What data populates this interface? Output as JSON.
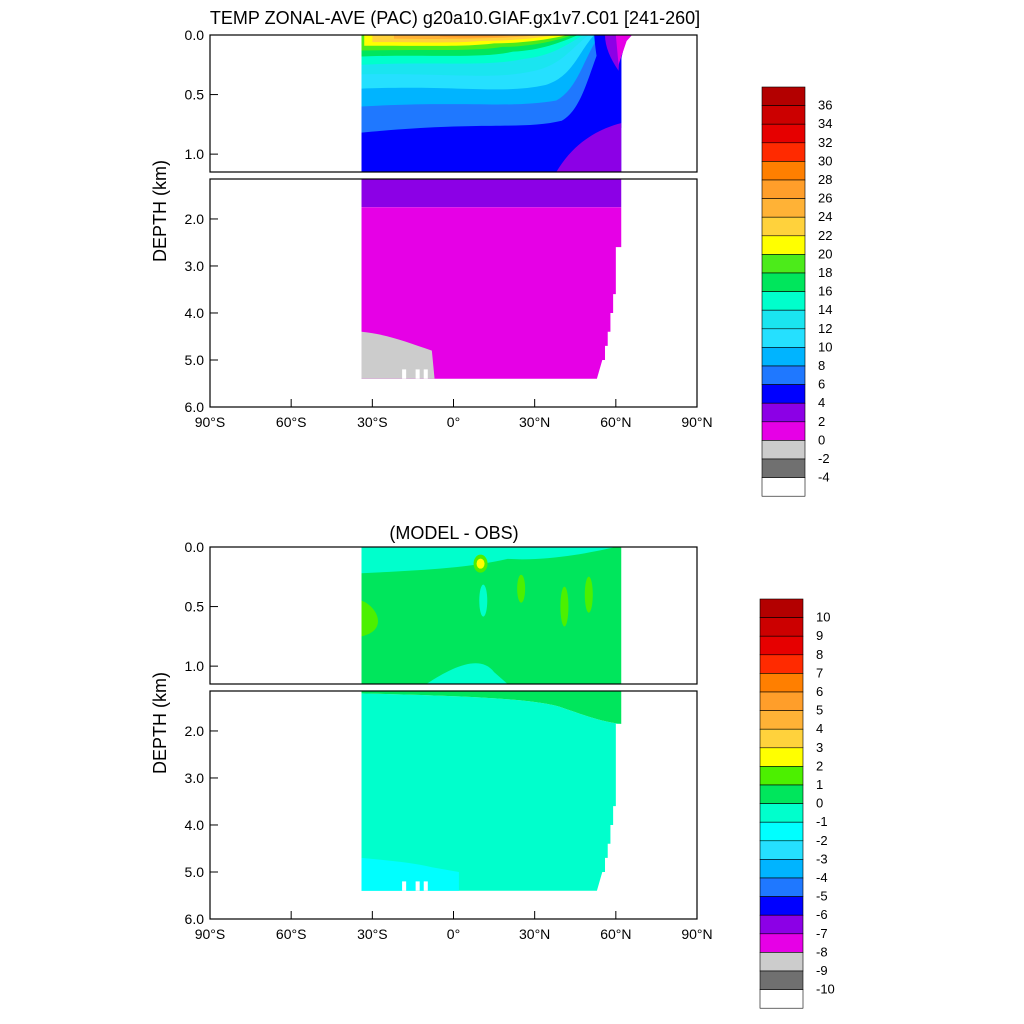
{
  "chart_data": [
    {
      "type": "heatmap",
      "title": "TEMP ZONAL-AVE (PAC) g20a10.GIAF.gx1v7.C01 [241-260]",
      "ylabel": "DEPTH (km)",
      "x_ticks": [
        "90°S",
        "60°S",
        "30°S",
        "0°",
        "30°N",
        "60°N",
        "90°N"
      ],
      "x_tick_values": [
        -90,
        -60,
        -30,
        0,
        30,
        60,
        90
      ],
      "upper_y_ticks": [
        "0.0",
        "0.5",
        "1.0"
      ],
      "upper_y_tick_values": [
        0,
        0.5,
        1.0
      ],
      "lower_y_ticks": [
        "2.0",
        "3.0",
        "4.0",
        "5.0",
        "6.0"
      ],
      "lower_y_tick_values": [
        2,
        3,
        4,
        5,
        6
      ],
      "xlim": [
        -90,
        90
      ],
      "ylim_upper": [
        0,
        1.15
      ],
      "ylim_lower": [
        1.15,
        6
      ],
      "data_lat_range": [
        -34,
        62
      ],
      "colorbar_labels": [
        "36",
        "34",
        "32",
        "30",
        "28",
        "26",
        "24",
        "22",
        "20",
        "18",
        "16",
        "14",
        "12",
        "10",
        "8",
        "6",
        "4",
        "2",
        "0",
        "-2",
        "-4"
      ],
      "colorbar_colors": [
        "#b30000",
        "#cc0000",
        "#e60000",
        "#ff2a00",
        "#ff7f00",
        "#ff9e2a",
        "#ffb236",
        "#ffd23c",
        "#ffff00",
        "#4ceb1a",
        "#00e65c",
        "#00ffcc",
        "#1ae5f0",
        "#25e0ff",
        "#00b4ff",
        "#1f78ff",
        "#0000ff",
        "#8c00e6",
        "#e600e6",
        "#cccccc",
        "#707070",
        "#ffffff"
      ]
    },
    {
      "type": "heatmap",
      "title": "(MODEL - OBS)",
      "ylabel": "DEPTH (km)",
      "x_ticks": [
        "90°S",
        "60°S",
        "30°S",
        "0°",
        "30°N",
        "60°N",
        "90°N"
      ],
      "x_tick_values": [
        -90,
        -60,
        -30,
        0,
        30,
        60,
        90
      ],
      "upper_y_ticks": [
        "0.0",
        "0.5",
        "1.0"
      ],
      "upper_y_tick_values": [
        0,
        0.5,
        1.0
      ],
      "lower_y_ticks": [
        "2.0",
        "3.0",
        "4.0",
        "5.0",
        "6.0"
      ],
      "lower_y_tick_values": [
        2,
        3,
        4,
        5,
        6
      ],
      "xlim": [
        -90,
        90
      ],
      "ylim_upper": [
        0,
        1.15
      ],
      "ylim_lower": [
        1.15,
        6
      ],
      "data_lat_range": [
        -34,
        62
      ],
      "colorbar_labels": [
        "10",
        "9",
        "8",
        "7",
        "6",
        "5",
        "4",
        "3",
        "2",
        "1",
        "0",
        "-1",
        "-2",
        "-3",
        "-4",
        "-5",
        "-6",
        "-7",
        "-8",
        "-9",
        "-10"
      ],
      "colorbar_colors": [
        "#b30000",
        "#cc0000",
        "#e60000",
        "#ff2a00",
        "#ff7f00",
        "#ff9e2a",
        "#ffb236",
        "#ffd23c",
        "#ffff00",
        "#4cf000",
        "#00e65c",
        "#00ffcc",
        "#00ffff",
        "#25e0ff",
        "#00b4ff",
        "#1f78ff",
        "#0000ff",
        "#8c00e6",
        "#e600e6",
        "#cccccc",
        "#707070",
        "#ffffff"
      ]
    }
  ]
}
